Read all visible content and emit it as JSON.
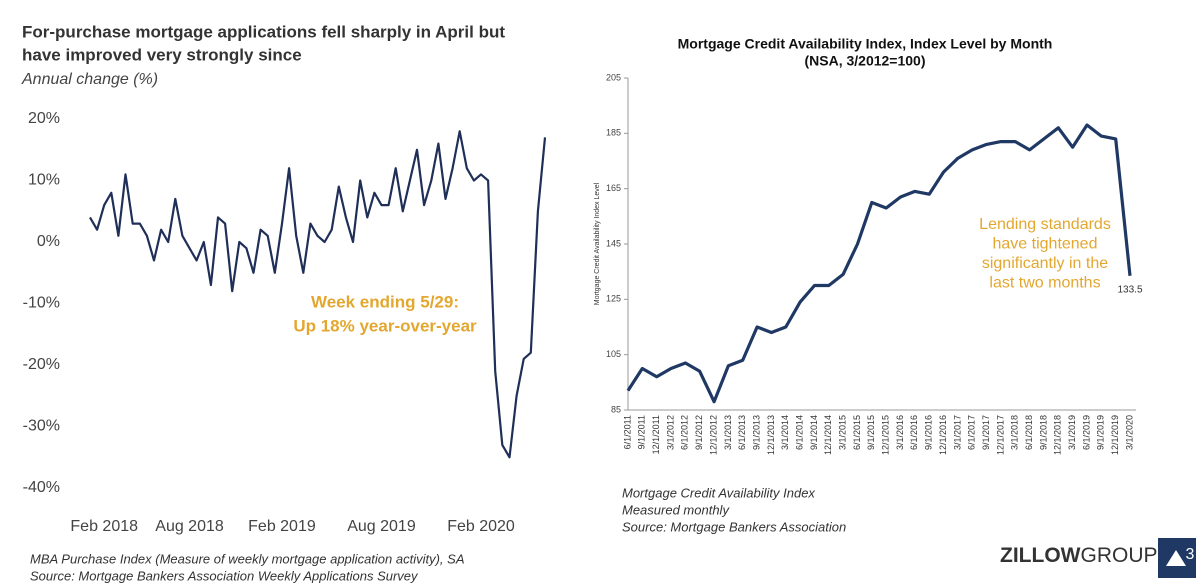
{
  "chart_data": [
    {
      "type": "line",
      "title": [
        "For-purchase mortgage applications fell sharply in April but",
        "have improved very strongly since"
      ],
      "subtitle": "Annual change (%)",
      "categories": [
        null,
        null,
        "Feb 2018",
        null,
        null,
        null,
        null,
        null,
        null,
        null,
        null,
        null,
        null,
        null,
        "Aug 2018",
        null,
        null,
        null,
        null,
        null,
        null,
        null,
        null,
        null,
        null,
        null,
        null,
        "Feb 2019",
        null,
        null,
        null,
        null,
        null,
        null,
        null,
        null,
        null,
        null,
        null,
        null,
        null,
        "Aug 2019",
        null,
        null,
        null,
        null,
        null,
        null,
        null,
        null,
        null,
        null,
        null,
        null,
        null,
        "Feb 2020",
        null,
        null,
        null,
        null,
        null,
        null,
        null,
        null,
        null
      ],
      "values": [
        4,
        2,
        6,
        8,
        1,
        11,
        3,
        3,
        1,
        -3,
        2,
        0,
        7,
        1,
        -1,
        -3,
        0,
        -7,
        4,
        3,
        -8,
        0,
        -1,
        -5,
        2,
        1,
        -5,
        3,
        12,
        1,
        -5,
        3,
        1,
        0,
        2,
        9,
        4,
        0,
        10,
        4,
        8,
        6,
        6,
        12,
        5,
        10,
        15,
        6,
        10,
        16,
        7,
        12,
        18,
        12,
        10,
        11,
        10,
        -21,
        -33,
        -35,
        -25,
        -19,
        -18,
        5,
        17
      ],
      "color": "#1f2f57",
      "ylim": [
        -40,
        20
      ],
      "yticks": [
        {
          "value": -40,
          "label": "-40%"
        },
        {
          "value": -30,
          "label": "-30%"
        },
        {
          "value": -20,
          "label": "-20%"
        },
        {
          "value": -10,
          "label": "-10%"
        },
        {
          "value": 0,
          "label": "0%"
        },
        {
          "value": 10,
          "label": "10%"
        },
        {
          "value": 20,
          "label": "20%"
        }
      ],
      "grid": false,
      "annotation": [
        "Week ending 5/29:",
        "Up 18% year-over-year"
      ],
      "annotation_color": "#e3a72f",
      "notes": [
        "MBA Purchase Index (Measure of weekly mortgage application activity), SA",
        "Source: Mortgage Bankers Association Weekly Applications Survey"
      ]
    },
    {
      "type": "line",
      "title": "Mortgage Credit Availability Index, Index Level by Month",
      "subtitle": "(NSA, 3/2012=100)",
      "y_label": "Mortgage Credit Availability Index Level",
      "categories": [
        "6/1/2011",
        "9/1/2011",
        "12/1/2011",
        "3/1/2012",
        "6/1/2012",
        "9/1/2012",
        "12/1/2012",
        "3/1/2013",
        "6/1/2013",
        "9/1/2013",
        "12/1/2013",
        "3/1/2014",
        "6/1/2014",
        "9/1/2014",
        "12/1/2014",
        "3/1/2015",
        "6/1/2015",
        "9/1/2015",
        "12/1/2015",
        "3/1/2016",
        "6/1/2016",
        "9/1/2016",
        "12/1/2016",
        "3/1/2017",
        "6/1/2017",
        "9/1/2017",
        "12/1/2017",
        "3/1/2018",
        "6/1/2018",
        "9/1/2018",
        "12/1/2018",
        "3/1/2019",
        "6/1/2019",
        "9/1/2019",
        "12/1/2019",
        "3/1/2020"
      ],
      "values": [
        92,
        100,
        97,
        100,
        102,
        99,
        88,
        101,
        103,
        115,
        113,
        115,
        124,
        130,
        130,
        134,
        145,
        160,
        158,
        162,
        164,
        163,
        171,
        176,
        179,
        181,
        182,
        182,
        179,
        183,
        187,
        180,
        188,
        184,
        183,
        133.5
      ],
      "color": "#1f3864",
      "ylim": [
        85,
        205
      ],
      "yticks": [
        85,
        105,
        125,
        145,
        165,
        185,
        205
      ],
      "grid": false,
      "end_label": true,
      "annotation": [
        "Lending standards",
        "have tightened",
        "significantly in the",
        "last two months"
      ],
      "annotation_color": "#e3a72f",
      "notes": [
        "Mortgage Credit Availability Index",
        "Measured monthly",
        "Source: Mortgage Bankers Association"
      ]
    }
  ],
  "footer": {
    "brand": "ZILLOW",
    "brand_suffix": "GROUP",
    "page": "3"
  }
}
